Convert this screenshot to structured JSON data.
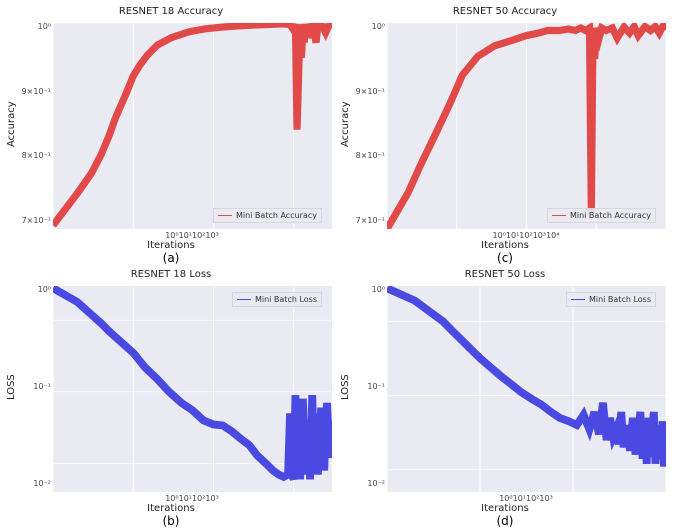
{
  "layout": {
    "rows": 2,
    "cols": 2,
    "background_color": "#ffffff",
    "panel_bg": "#eaeaf2",
    "grid_color": "#ffffff",
    "label_fontsize": 10,
    "tick_fontsize": 8,
    "caption_fontsize": 12
  },
  "panels": {
    "a": {
      "title": "RESNET 18 Accuracy",
      "caption": "(a)",
      "type": "line",
      "color": "#e24a4a",
      "line_width": 1.2,
      "xlabel": "Iterations",
      "ylabel": "Accuracy",
      "xscale": "log",
      "yscale": "log",
      "xlim": [
        1,
        3000
      ],
      "ylim": [
        0.65,
        1.0
      ],
      "xticks": [
        "10⁰",
        "10¹",
        "10²",
        "10³"
      ],
      "yticks": [
        "10⁰",
        "9×10⁻¹",
        "8×10⁻¹",
        "7×10⁻¹"
      ],
      "legend_label": "Mini Batch Accuracy",
      "legend_pos": "bottom-right",
      "x": [
        1,
        2,
        3,
        4,
        5,
        6,
        8,
        10,
        12,
        15,
        20,
        30,
        50,
        80,
        120,
        200,
        350,
        500,
        700,
        900,
        1000,
        1050,
        1100,
        1200,
        1250,
        1300,
        1350,
        1400,
        1500,
        1700,
        1900,
        2000,
        2200,
        2500,
        2800,
        3000
      ],
      "y": [
        0.655,
        0.7,
        0.73,
        0.76,
        0.79,
        0.82,
        0.86,
        0.895,
        0.915,
        0.935,
        0.955,
        0.97,
        0.982,
        0.988,
        0.991,
        0.994,
        0.996,
        0.997,
        0.998,
        0.997,
        0.985,
        0.998,
        0.8,
        0.996,
        0.93,
        0.998,
        0.96,
        0.998,
        0.97,
        0.998,
        0.96,
        0.998,
        0.998,
        0.98,
        0.998,
        0.998
      ]
    },
    "c": {
      "title": "RESNET 50 Accuracy",
      "caption": "(c)",
      "type": "line",
      "color": "#e24a4a",
      "line_width": 1.2,
      "xlabel": "Iterations",
      "ylabel": "Accuracy",
      "xscale": "log",
      "yscale": "log",
      "xlim": [
        1,
        10000
      ],
      "ylim": [
        0.66,
        1.0
      ],
      "xticks": [
        "10⁰",
        "10¹",
        "10²",
        "10³",
        "10⁴"
      ],
      "yticks": [
        "10⁰",
        "9×10⁻¹",
        "8×10⁻¹",
        "7×10⁻¹"
      ],
      "legend_label": "Mini Batch Accuracy",
      "legend_pos": "bottom-right",
      "x": [
        1,
        2,
        3,
        5,
        8,
        12,
        20,
        35,
        60,
        100,
        150,
        200,
        300,
        400,
        500,
        600,
        700,
        800,
        850,
        900,
        950,
        1000,
        1100,
        1200,
        1400,
        1700,
        2000,
        2500,
        3000,
        3500,
        4000,
        5000,
        6000,
        7000,
        8000,
        9000,
        10000
      ],
      "y": [
        0.66,
        0.71,
        0.75,
        0.8,
        0.85,
        0.9,
        0.935,
        0.955,
        0.965,
        0.975,
        0.98,
        0.985,
        0.985,
        0.988,
        0.985,
        0.99,
        0.985,
        0.99,
        0.68,
        0.99,
        0.93,
        0.99,
        0.97,
        0.99,
        0.985,
        0.99,
        0.97,
        0.992,
        0.98,
        0.993,
        0.975,
        0.993,
        0.985,
        0.993,
        0.98,
        0.993,
        0.993
      ]
    },
    "b": {
      "title": "RESNET 18 Loss",
      "caption": "(b)",
      "type": "line",
      "color": "#4a4ae2",
      "line_width": 1.3,
      "xlabel": "Iterations",
      "ylabel": "LOSS",
      "xscale": "log",
      "yscale": "log",
      "xlim": [
        1,
        3000
      ],
      "ylim": [
        0.004,
        3.0
      ],
      "xticks": [
        "10⁰",
        "10¹",
        "10²",
        "10³"
      ],
      "yticks": [
        "10⁰",
        "10⁻¹",
        "10⁻²"
      ],
      "legend_label": "Mini Batch Loss",
      "legend_pos": "top-right",
      "x": [
        1,
        2,
        3,
        4,
        5,
        7,
        10,
        14,
        20,
        28,
        40,
        55,
        75,
        100,
        130,
        170,
        220,
        280,
        350,
        450,
        550,
        650,
        750,
        850,
        900,
        950,
        1000,
        1050,
        1100,
        1150,
        1200,
        1300,
        1400,
        1500,
        1600,
        1700,
        1800,
        1900,
        2000,
        2200,
        2400,
        2600,
        2800,
        3000
      ],
      "y": [
        2.8,
        1.8,
        1.2,
        0.9,
        0.7,
        0.5,
        0.35,
        0.22,
        0.15,
        0.1,
        0.07,
        0.055,
        0.04,
        0.035,
        0.034,
        0.028,
        0.022,
        0.018,
        0.013,
        0.01,
        0.008,
        0.007,
        0.0065,
        0.007,
        0.05,
        0.007,
        0.006,
        0.09,
        0.007,
        0.03,
        0.006,
        0.08,
        0.007,
        0.04,
        0.006,
        0.09,
        0.01,
        0.05,
        0.007,
        0.06,
        0.008,
        0.07,
        0.012,
        0.04
      ]
    },
    "d": {
      "title": "RESNET 50 Loss",
      "caption": "(d)",
      "type": "line",
      "color": "#4a4ae2",
      "line_width": 1.3,
      "xlabel": "Iterations",
      "ylabel": "LOSS",
      "xscale": "log",
      "yscale": "log",
      "xlim": [
        1,
        1000
      ],
      "ylim": [
        0.005,
        3.0
      ],
      "xticks": [
        "10⁰",
        "10¹",
        "10²",
        "10³"
      ],
      "yticks": [
        "10⁰",
        "10⁻¹",
        "10⁻²"
      ],
      "legend_label": "Mini Batch Loss",
      "legend_pos": "top-right",
      "x": [
        1,
        2,
        3,
        4,
        5,
        6,
        8,
        10,
        13,
        17,
        22,
        28,
        36,
        46,
        58,
        72,
        90,
        110,
        130,
        150,
        170,
        190,
        210,
        230,
        250,
        270,
        290,
        310,
        330,
        350,
        380,
        410,
        440,
        470,
        500,
        530,
        560,
        590,
        620,
        650,
        680,
        710,
        740,
        770,
        800,
        830,
        860,
        890,
        920,
        950,
        980,
        1000
      ],
      "y": [
        2.8,
        1.9,
        1.3,
        1.0,
        0.75,
        0.6,
        0.42,
        0.32,
        0.24,
        0.18,
        0.14,
        0.11,
        0.09,
        0.075,
        0.06,
        0.05,
        0.045,
        0.04,
        0.055,
        0.035,
        0.06,
        0.03,
        0.08,
        0.025,
        0.05,
        0.028,
        0.035,
        0.022,
        0.06,
        0.02,
        0.04,
        0.018,
        0.05,
        0.016,
        0.03,
        0.06,
        0.014,
        0.045,
        0.012,
        0.05,
        0.015,
        0.035,
        0.06,
        0.012,
        0.04,
        0.014,
        0.03,
        0.02,
        0.045,
        0.011,
        0.035,
        0.025
      ]
    }
  }
}
